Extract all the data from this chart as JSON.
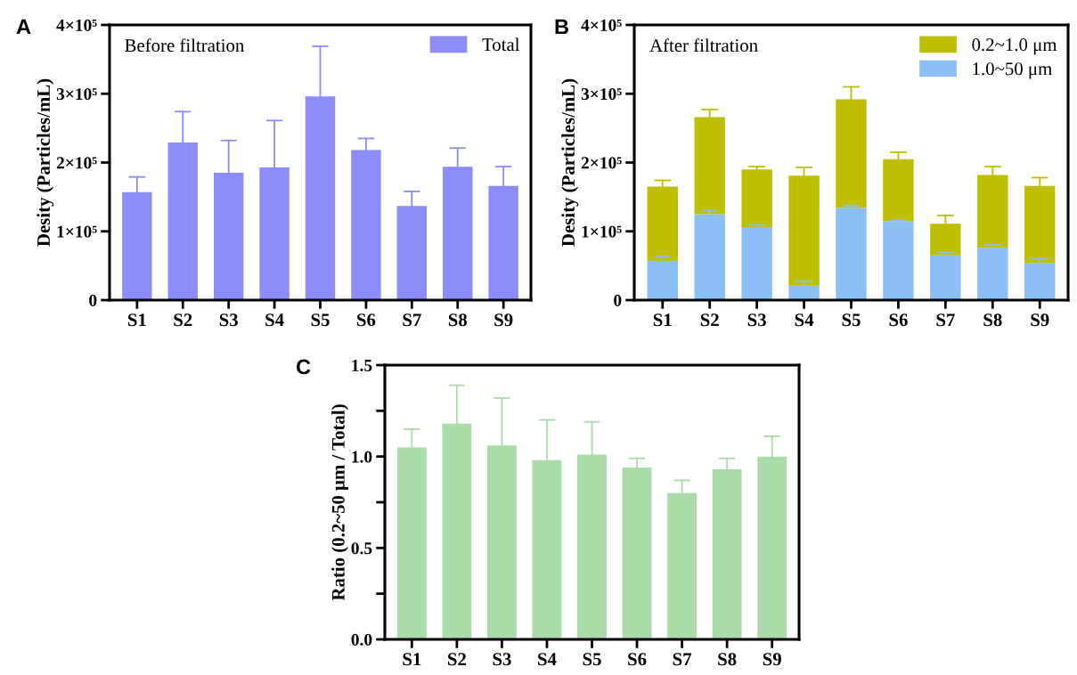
{
  "chart_data": [
    {
      "type": "bar",
      "title": "A",
      "ylabel": "Desity (Particles/mL)",
      "annotations": [
        "Before filtration"
      ],
      "categories": [
        "S1",
        "S2",
        "S3",
        "S4",
        "S5",
        "S6",
        "S7",
        "S8",
        "S9"
      ],
      "series": [
        {
          "name": "Total",
          "color": "#8c8cfa",
          "values": [
            157000,
            229000,
            185000,
            193000,
            296000,
            218000,
            137000,
            194000,
            166000
          ],
          "errors": [
            [
              157000,
              179000
            ],
            [
              229000,
              274000
            ],
            [
              185000,
              232000
            ],
            [
              193000,
              261000
            ],
            [
              296000,
              369000
            ],
            [
              218000,
              235000
            ],
            [
              137000,
              158000
            ],
            [
              194000,
              221000
            ],
            [
              166000,
              194000
            ]
          ]
        }
      ],
      "ylim": [
        0,
        400000
      ],
      "yticks": [
        {
          "value": 0,
          "label": "0"
        },
        {
          "value": 100000,
          "label": "1×10⁵"
        },
        {
          "value": 200000,
          "label": "2×10⁵"
        },
        {
          "value": 300000,
          "label": "3×10⁵"
        },
        {
          "value": 400000,
          "label": "4×10⁵"
        }
      ],
      "legend": "top right",
      "grid": false
    },
    {
      "type": "bar",
      "title": "B",
      "ylabel": "Desity (Particles/mL)",
      "annotations": [
        "After filtration"
      ],
      "stacked": true,
      "categories": [
        "S1",
        "S2",
        "S3",
        "S4",
        "S5",
        "S6",
        "S7",
        "S8",
        "S9"
      ],
      "series": [
        {
          "name": "1.0~50 μm",
          "color": "#8bbff5",
          "values": [
            57000,
            125000,
            106000,
            21000,
            134000,
            115000,
            65000,
            76000,
            54000
          ],
          "errors": [
            [
              57000,
              63000
            ],
            [
              125000,
              130000
            ],
            [
              106000,
              109000
            ],
            [
              21000,
              27000
            ],
            [
              134000,
              137000
            ],
            [
              115000,
              116000
            ],
            [
              65000,
              69000
            ],
            [
              76000,
              80000
            ],
            [
              54000,
              60000
            ]
          ]
        },
        {
          "name": "0.2~1.0 μm",
          "color": "#bfbf00",
          "values": [
            108000,
            141000,
            84000,
            160000,
            158000,
            90000,
            46000,
            106000,
            112000
          ],
          "errors": [
            [
              165000,
              174000
            ],
            [
              266000,
              277000
            ],
            [
              190000,
              194000
            ],
            [
              181000,
              193000
            ],
            [
              292000,
              310000
            ],
            [
              205000,
              215000
            ],
            [
              111000,
              123000
            ],
            [
              182000,
              194000
            ],
            [
              166000,
              178000
            ]
          ]
        }
      ],
      "ylim": [
        0,
        400000
      ],
      "yticks": [
        {
          "value": 0,
          "label": "0"
        },
        {
          "value": 100000,
          "label": "1×10⁵"
        },
        {
          "value": 200000,
          "label": "2×10⁵"
        },
        {
          "value": 300000,
          "label": "3×10⁵"
        },
        {
          "value": 400000,
          "label": "4×10⁵"
        }
      ],
      "legend": "top right",
      "grid": false
    },
    {
      "type": "bar",
      "title": "C",
      "ylabel": "Ratio (0.2~50 μm / Total)",
      "categories": [
        "S1",
        "S2",
        "S3",
        "S4",
        "S5",
        "S6",
        "S7",
        "S8",
        "S9"
      ],
      "series": [
        {
          "color": "#aadcaa",
          "values": [
            1.05,
            1.18,
            1.06,
            0.98,
            1.01,
            0.94,
            0.8,
            0.93,
            1.0
          ],
          "errors": [
            [
              1.05,
              1.15
            ],
            [
              1.18,
              1.39
            ],
            [
              1.06,
              1.32
            ],
            [
              0.98,
              1.2
            ],
            [
              1.01,
              1.19
            ],
            [
              0.94,
              0.99
            ],
            [
              0.8,
              0.87
            ],
            [
              0.93,
              0.99
            ],
            [
              1.0,
              1.11
            ]
          ]
        }
      ],
      "ylim": [
        0,
        1.5
      ],
      "yticks": [
        "0.0",
        {
          "value": 0.25,
          "label": null
        },
        0.5,
        {
          "value": 0.75,
          "label": null
        },
        "1.0",
        {
          "value": 1.25,
          "label": null
        },
        1.5
      ],
      "grid": false
    }
  ]
}
